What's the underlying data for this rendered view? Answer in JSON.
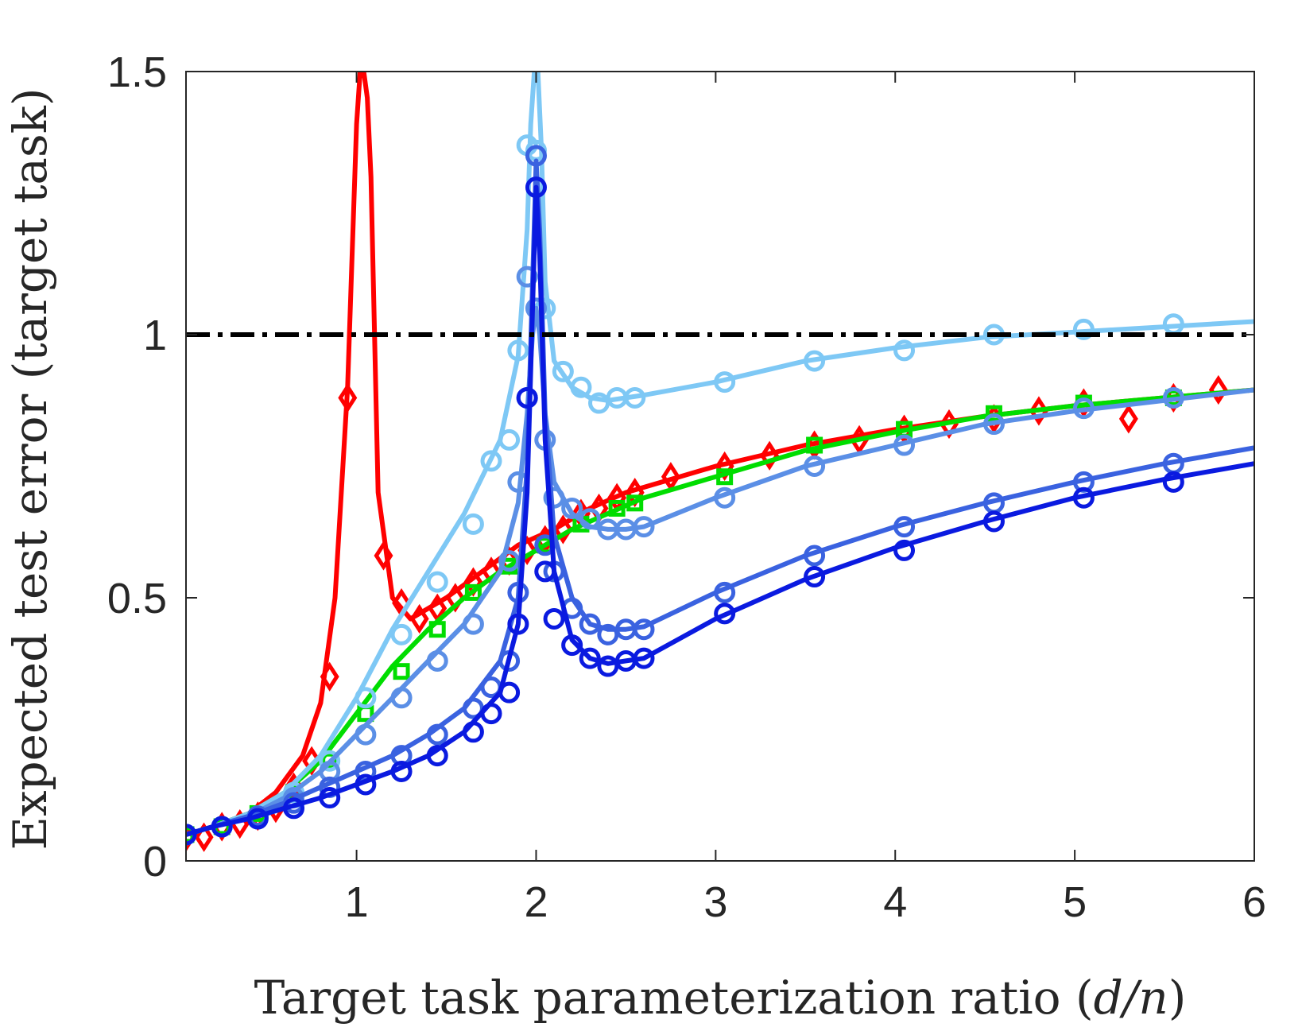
{
  "chart_data": {
    "type": "line",
    "title": "",
    "xlabel_text": "Target task parameterization ratio (",
    "xlabel_var": "d/n",
    "xlabel_close": ")",
    "ylabel": "Expected test error (target task)",
    "xlim": [
      0.05,
      6
    ],
    "ylim": [
      0,
      1.5
    ],
    "xticks": [
      1,
      2,
      3,
      4,
      5,
      6
    ],
    "yticks": [
      0,
      0.5,
      1,
      1.5
    ],
    "xtick_labels": [
      "1",
      "2",
      "3",
      "4",
      "5",
      "6"
    ],
    "ytick_labels": [
      "0",
      "0.5",
      "1",
      "1.5"
    ],
    "reference_line": {
      "y": 1.0,
      "style": "dash-dot",
      "color": "#000000"
    },
    "series": [
      {
        "name": "red-diamond",
        "color": "#ff0000",
        "marker": "diamond",
        "curve_x": [
          0.05,
          0.2,
          0.4,
          0.55,
          0.7,
          0.8,
          0.88,
          0.95,
          1.0,
          1.02,
          1.04,
          1.06,
          1.08,
          1.12,
          1.2,
          1.3,
          1.5,
          1.7,
          1.9,
          2.1,
          2.3,
          2.5,
          2.8,
          3.0,
          3.5,
          4.0,
          4.5,
          5.0,
          5.5,
          6.0
        ],
        "curve_y": [
          0.05,
          0.065,
          0.09,
          0.13,
          0.2,
          0.3,
          0.5,
          0.9,
          1.4,
          1.5,
          1.5,
          1.45,
          1.3,
          0.7,
          0.5,
          0.46,
          0.5,
          0.55,
          0.6,
          0.63,
          0.67,
          0.7,
          0.73,
          0.75,
          0.79,
          0.82,
          0.845,
          0.865,
          0.88,
          0.895
        ],
        "marker_x": [
          0.05,
          0.15,
          0.25,
          0.35,
          0.45,
          0.55,
          0.65,
          0.75,
          0.85,
          0.95,
          1.15,
          1.25,
          1.35,
          1.45,
          1.55,
          1.65,
          1.75,
          1.85,
          1.95,
          2.05,
          2.15,
          2.25,
          2.35,
          2.45,
          2.55,
          2.75,
          3.05,
          3.3,
          3.55,
          3.8,
          4.05,
          4.3,
          4.55,
          4.8,
          5.05,
          5.3,
          5.55,
          5.8
        ],
        "marker_y": [
          0.045,
          0.045,
          0.065,
          0.07,
          0.085,
          0.1,
          0.14,
          0.19,
          0.35,
          0.88,
          0.58,
          0.49,
          0.46,
          0.48,
          0.5,
          0.53,
          0.55,
          0.57,
          0.59,
          0.61,
          0.63,
          0.66,
          0.67,
          0.69,
          0.7,
          0.73,
          0.75,
          0.77,
          0.79,
          0.8,
          0.82,
          0.83,
          0.84,
          0.855,
          0.87,
          0.84,
          0.88,
          0.895
        ]
      },
      {
        "name": "green-square",
        "color": "#00dd00",
        "marker": "square",
        "curve_x": [
          0.05,
          0.2,
          0.4,
          0.6,
          0.8,
          1.0,
          1.2,
          1.4,
          1.6,
          1.8,
          2.0,
          2.2,
          2.4,
          2.6,
          2.8,
          3.0,
          3.5,
          4.0,
          4.5,
          5.0,
          5.5,
          6.0
        ],
        "curve_y": [
          0.05,
          0.065,
          0.09,
          0.13,
          0.19,
          0.28,
          0.37,
          0.44,
          0.5,
          0.55,
          0.59,
          0.63,
          0.66,
          0.69,
          0.71,
          0.73,
          0.78,
          0.815,
          0.845,
          0.865,
          0.88,
          0.895
        ],
        "marker_x": [
          0.05,
          0.25,
          0.45,
          0.65,
          0.85,
          1.05,
          1.25,
          1.45,
          1.65,
          1.85,
          2.05,
          2.25,
          2.45,
          2.55,
          3.05,
          3.55,
          4.05,
          4.55,
          5.05,
          5.55
        ],
        "marker_y": [
          0.05,
          0.065,
          0.09,
          0.13,
          0.19,
          0.28,
          0.36,
          0.44,
          0.51,
          0.56,
          0.6,
          0.64,
          0.67,
          0.68,
          0.73,
          0.79,
          0.82,
          0.85,
          0.87,
          0.88
        ]
      },
      {
        "name": "light-blue-circle",
        "color": "#7ec8f5",
        "marker": "circle",
        "curve_x": [
          0.05,
          0.2,
          0.4,
          0.6,
          0.8,
          1.0,
          1.2,
          1.4,
          1.6,
          1.8,
          1.9,
          1.95,
          1.97,
          1.99,
          2.0,
          2.01,
          2.03,
          2.05,
          2.1,
          2.2,
          2.3,
          2.4,
          2.5,
          2.6,
          3.0,
          3.5,
          4.0,
          4.5,
          5.0,
          5.5,
          6.0
        ],
        "curve_y": [
          0.05,
          0.065,
          0.09,
          0.13,
          0.2,
          0.31,
          0.44,
          0.55,
          0.66,
          0.8,
          0.96,
          1.2,
          1.4,
          1.5,
          1.5,
          1.5,
          1.35,
          1.1,
          0.95,
          0.9,
          0.88,
          0.875,
          0.88,
          0.885,
          0.91,
          0.95,
          0.975,
          0.995,
          1.005,
          1.015,
          1.025
        ],
        "marker_x": [
          0.05,
          0.25,
          0.45,
          0.65,
          0.85,
          1.05,
          1.25,
          1.45,
          1.65,
          1.75,
          1.85,
          1.9,
          1.95,
          2.0,
          2.05,
          2.15,
          2.25,
          2.35,
          2.45,
          2.55,
          3.05,
          3.55,
          4.05,
          4.55,
          5.05,
          5.55
        ],
        "marker_y": [
          0.05,
          0.065,
          0.085,
          0.13,
          0.19,
          0.31,
          0.43,
          0.53,
          0.64,
          0.76,
          0.8,
          0.97,
          1.36,
          1.35,
          1.05,
          0.93,
          0.9,
          0.87,
          0.88,
          0.88,
          0.91,
          0.95,
          0.97,
          1.0,
          1.01,
          1.02
        ]
      },
      {
        "name": "mid-blue-circle",
        "color": "#5b8fe6",
        "marker": "circle",
        "curve_x": [
          0.05,
          0.2,
          0.4,
          0.6,
          0.8,
          1.0,
          1.2,
          1.4,
          1.6,
          1.8,
          1.9,
          1.95,
          1.98,
          2.0,
          2.02,
          2.05,
          2.1,
          2.2,
          2.3,
          2.4,
          2.5,
          2.6,
          3.0,
          3.5,
          4.0,
          4.5,
          5.0,
          5.5,
          6.0
        ],
        "curve_y": [
          0.05,
          0.065,
          0.085,
          0.12,
          0.17,
          0.24,
          0.31,
          0.38,
          0.45,
          0.55,
          0.68,
          0.85,
          1.0,
          1.05,
          1.0,
          0.85,
          0.72,
          0.66,
          0.635,
          0.63,
          0.63,
          0.635,
          0.69,
          0.75,
          0.79,
          0.83,
          0.855,
          0.875,
          0.895
        ],
        "marker_x": [
          0.05,
          0.25,
          0.45,
          0.65,
          0.85,
          1.05,
          1.25,
          1.45,
          1.65,
          1.85,
          1.9,
          1.95,
          2.0,
          2.05,
          2.1,
          2.2,
          2.3,
          2.4,
          2.5,
          2.6,
          3.05,
          3.55,
          4.05,
          4.55,
          5.05,
          5.55
        ],
        "marker_y": [
          0.05,
          0.065,
          0.085,
          0.12,
          0.17,
          0.24,
          0.31,
          0.38,
          0.45,
          0.57,
          0.72,
          1.11,
          1.05,
          0.8,
          0.69,
          0.67,
          0.65,
          0.63,
          0.63,
          0.635,
          0.69,
          0.75,
          0.79,
          0.83,
          0.86,
          0.88
        ]
      },
      {
        "name": "royal-blue-circle",
        "color": "#3a62e0",
        "marker": "circle",
        "curve_x": [
          0.05,
          0.2,
          0.4,
          0.6,
          0.8,
          1.0,
          1.2,
          1.4,
          1.6,
          1.8,
          1.9,
          1.95,
          1.98,
          2.0,
          2.02,
          2.05,
          2.1,
          2.2,
          2.3,
          2.4,
          2.5,
          2.6,
          3.0,
          3.5,
          4.0,
          4.5,
          5.0,
          5.5,
          6.0
        ],
        "curve_y": [
          0.05,
          0.065,
          0.085,
          0.11,
          0.14,
          0.17,
          0.2,
          0.24,
          0.29,
          0.38,
          0.5,
          0.75,
          1.1,
          1.33,
          1.2,
          0.85,
          0.62,
          0.5,
          0.45,
          0.44,
          0.44,
          0.445,
          0.51,
          0.58,
          0.635,
          0.68,
          0.72,
          0.755,
          0.785
        ],
        "marker_x": [
          0.05,
          0.25,
          0.45,
          0.65,
          0.85,
          1.05,
          1.25,
          1.45,
          1.65,
          1.75,
          1.85,
          1.9,
          1.95,
          2.0,
          2.05,
          2.1,
          2.2,
          2.3,
          2.4,
          2.5,
          2.6,
          3.05,
          3.55,
          4.05,
          4.55,
          5.05,
          5.55
        ],
        "marker_y": [
          0.05,
          0.065,
          0.085,
          0.11,
          0.14,
          0.17,
          0.2,
          0.24,
          0.29,
          0.33,
          0.38,
          0.51,
          0.88,
          1.34,
          0.6,
          0.55,
          0.48,
          0.45,
          0.43,
          0.44,
          0.44,
          0.51,
          0.58,
          0.635,
          0.68,
          0.72,
          0.755
        ]
      },
      {
        "name": "dark-blue-circle",
        "color": "#0a1ae0",
        "marker": "circle",
        "curve_x": [
          0.05,
          0.2,
          0.4,
          0.6,
          0.8,
          1.0,
          1.2,
          1.4,
          1.6,
          1.8,
          1.9,
          1.95,
          1.98,
          2.0,
          2.02,
          2.05,
          2.1,
          2.2,
          2.3,
          2.4,
          2.5,
          2.6,
          3.0,
          3.5,
          4.0,
          4.5,
          5.0,
          5.5,
          6.0
        ],
        "curve_y": [
          0.05,
          0.065,
          0.08,
          0.1,
          0.12,
          0.145,
          0.17,
          0.2,
          0.245,
          0.32,
          0.45,
          0.7,
          1.05,
          1.28,
          1.15,
          0.8,
          0.55,
          0.42,
          0.385,
          0.375,
          0.38,
          0.385,
          0.46,
          0.535,
          0.595,
          0.645,
          0.69,
          0.725,
          0.755
        ],
        "marker_x": [
          0.05,
          0.25,
          0.45,
          0.65,
          0.85,
          1.05,
          1.25,
          1.45,
          1.65,
          1.75,
          1.85,
          1.9,
          1.95,
          2.0,
          2.05,
          2.1,
          2.2,
          2.3,
          2.4,
          2.5,
          2.6,
          3.05,
          3.55,
          4.05,
          4.55,
          5.05,
          5.55
        ],
        "marker_y": [
          0.05,
          0.065,
          0.08,
          0.1,
          0.12,
          0.145,
          0.17,
          0.2,
          0.245,
          0.28,
          0.32,
          0.45,
          0.88,
          1.28,
          0.55,
          0.46,
          0.41,
          0.385,
          0.37,
          0.38,
          0.385,
          0.47,
          0.54,
          0.59,
          0.645,
          0.69,
          0.72
        ]
      }
    ]
  }
}
